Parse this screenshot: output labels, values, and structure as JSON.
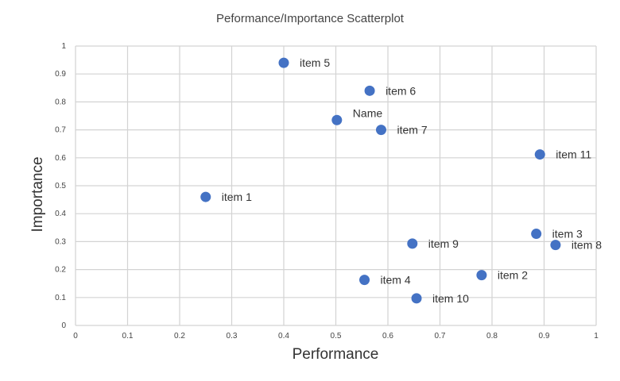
{
  "chart_data": {
    "type": "scatter",
    "title": "Peformance/Importance Scatterplot",
    "xlabel": "Performance",
    "ylabel": "Importance",
    "xlim": [
      0,
      1
    ],
    "ylim": [
      0,
      1
    ],
    "xticks": [
      "0",
      "0.1",
      "0.2",
      "0.3",
      "0.4",
      "0.5",
      "0.6",
      "0.7",
      "0.8",
      "0.9",
      "1"
    ],
    "yticks": [
      "0",
      "0.1",
      "0.2",
      "0.3",
      "0.4",
      "0.5",
      "0.6",
      "0.7",
      "0.8",
      "0.9",
      "1"
    ],
    "grid": true,
    "color": "#4472c4",
    "points": [
      {
        "label": "item 5",
        "x": 0.4,
        "y": 0.94
      },
      {
        "label": "item 6",
        "x": 0.565,
        "y": 0.84
      },
      {
        "label": "Name",
        "x": 0.502,
        "y": 0.735
      },
      {
        "label": "item 7",
        "x": 0.587,
        "y": 0.7
      },
      {
        "label": "item 11",
        "x": 0.892,
        "y": 0.612
      },
      {
        "label": "item 1",
        "x": 0.25,
        "y": 0.46
      },
      {
        "label": "item 3",
        "x": 0.885,
        "y": 0.328
      },
      {
        "label": "item 8",
        "x": 0.922,
        "y": 0.288
      },
      {
        "label": "item 9",
        "x": 0.647,
        "y": 0.293
      },
      {
        "label": "item 2",
        "x": 0.78,
        "y": 0.18
      },
      {
        "label": "item 4",
        "x": 0.555,
        "y": 0.163
      },
      {
        "label": "item 10",
        "x": 0.655,
        "y": 0.097
      }
    ]
  }
}
